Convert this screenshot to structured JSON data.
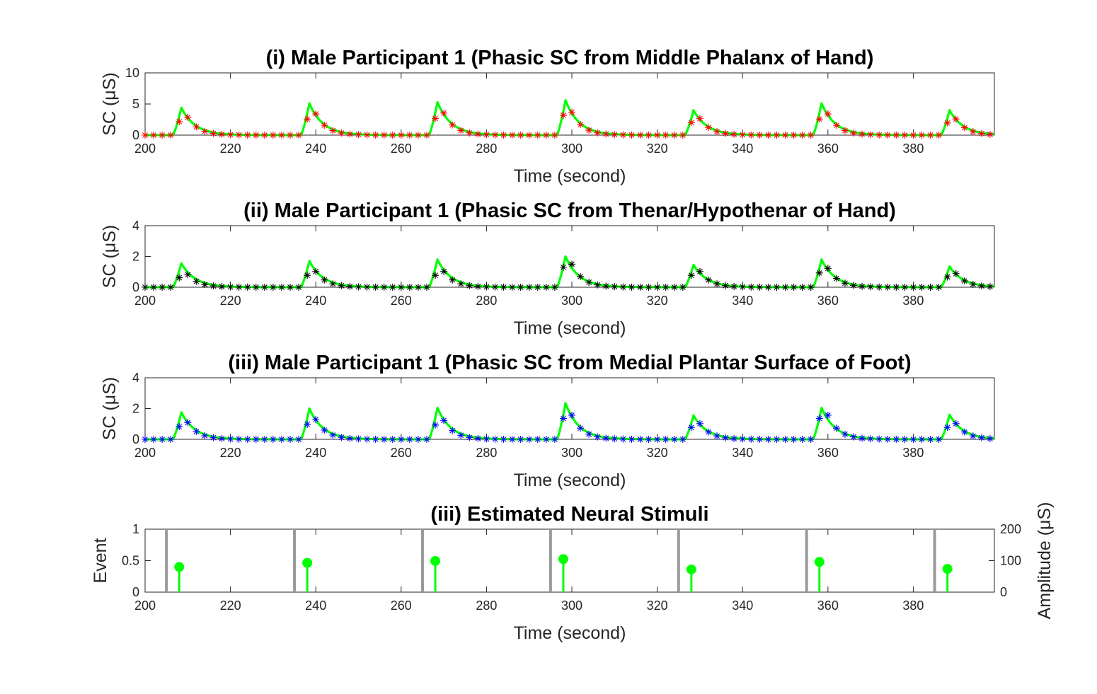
{
  "chart_data": [
    {
      "type": "line",
      "title": "(i) Male Participant 1 (Phasic SC from Middle Phalanx of Hand)",
      "xlabel": "Time (second)",
      "ylabel": "SC (μS)",
      "xlim": [
        200,
        399
      ],
      "ylim": [
        0,
        10
      ],
      "xticks": [
        200,
        220,
        240,
        260,
        280,
        300,
        320,
        340,
        360,
        380
      ],
      "yticks": [
        0,
        5,
        10
      ],
      "grid": false,
      "series": [
        {
          "role": "measured",
          "marker": "asterisk",
          "color": "#ff0000",
          "sample_step": 2,
          "peaks": [
            {
              "onset": 206.5,
              "peak_time": 209,
              "amplitude": 4.2
            },
            {
              "onset": 236.5,
              "peak_time": 239,
              "amplitude": 5.0
            },
            {
              "onset": 266.5,
              "peak_time": 269,
              "amplitude": 5.2
            },
            {
              "onset": 296.0,
              "peak_time": 299,
              "amplitude": 5.4
            },
            {
              "onset": 326.5,
              "peak_time": 329,
              "amplitude": 3.9
            },
            {
              "onset": 356.5,
              "peak_time": 359,
              "amplitude": 5.0
            },
            {
              "onset": 386.5,
              "peak_time": 389,
              "amplitude": 3.8
            }
          ]
        },
        {
          "role": "fitted",
          "line": "solid",
          "color": "#00ff00",
          "peaks": [
            {
              "onset": 206.5,
              "peak_time": 208.5,
              "amplitude": 4.4
            },
            {
              "onset": 236.5,
              "peak_time": 238.5,
              "amplitude": 5.1
            },
            {
              "onset": 266.5,
              "peak_time": 268.5,
              "amplitude": 5.3
            },
            {
              "onset": 296.5,
              "peak_time": 298.5,
              "amplitude": 5.6
            },
            {
              "onset": 326.5,
              "peak_time": 328.5,
              "amplitude": 4.0
            },
            {
              "onset": 356.5,
              "peak_time": 358.5,
              "amplitude": 5.1
            },
            {
              "onset": 386.5,
              "peak_time": 388.5,
              "amplitude": 4.0
            }
          ]
        }
      ]
    },
    {
      "type": "line",
      "title": "(ii) Male Participant 1 (Phasic SC from Thenar/Hypothenar of Hand)",
      "xlabel": "Time (second)",
      "ylabel": "SC (μS)",
      "xlim": [
        200,
        399
      ],
      "ylim": [
        0,
        4
      ],
      "xticks": [
        200,
        220,
        240,
        260,
        280,
        300,
        320,
        340,
        360,
        380
      ],
      "yticks": [
        0,
        2,
        4
      ],
      "grid": false,
      "series": [
        {
          "role": "measured",
          "marker": "asterisk",
          "color": "#000000",
          "sample_step": 2,
          "peaks": [
            {
              "onset": 206.5,
              "peak_time": 209,
              "amplitude": 1.2
            },
            {
              "onset": 236.5,
              "peak_time": 239,
              "amplitude": 1.5
            },
            {
              "onset": 266.5,
              "peak_time": 269,
              "amplitude": 1.5
            },
            {
              "onset": 296.0,
              "peak_time": 299,
              "amplitude": 2.2
            },
            {
              "onset": 326.5,
              "peak_time": 329,
              "amplitude": 1.5
            },
            {
              "onset": 356.5,
              "peak_time": 359,
              "amplitude": 1.8
            },
            {
              "onset": 386.5,
              "peak_time": 389,
              "amplitude": 1.3
            }
          ]
        },
        {
          "role": "fitted",
          "line": "solid",
          "color": "#00ff00",
          "peaks": [
            {
              "onset": 206.5,
              "peak_time": 208.5,
              "amplitude": 1.55
            },
            {
              "onset": 236.5,
              "peak_time": 238.5,
              "amplitude": 1.7
            },
            {
              "onset": 266.5,
              "peak_time": 268.5,
              "amplitude": 1.8
            },
            {
              "onset": 296.5,
              "peak_time": 298.5,
              "amplitude": 2.0
            },
            {
              "onset": 326.5,
              "peak_time": 328.5,
              "amplitude": 1.45
            },
            {
              "onset": 356.5,
              "peak_time": 358.5,
              "amplitude": 1.8
            },
            {
              "onset": 386.5,
              "peak_time": 388.5,
              "amplitude": 1.35
            }
          ]
        }
      ]
    },
    {
      "type": "line",
      "title": "(iii) Male Participant 1 (Phasic SC from Medial Plantar Surface of Foot)",
      "xlabel": "Time (second)",
      "ylabel": "SC (μS)",
      "xlim": [
        200,
        399
      ],
      "ylim": [
        0,
        4
      ],
      "xticks": [
        200,
        220,
        240,
        260,
        280,
        300,
        320,
        340,
        360,
        380
      ],
      "yticks": [
        0,
        2,
        4
      ],
      "grid": false,
      "series": [
        {
          "role": "measured",
          "marker": "asterisk",
          "color": "#0000ff",
          "sample_step": 2,
          "peaks": [
            {
              "onset": 206.5,
              "peak_time": 209,
              "amplitude": 1.6
            },
            {
              "onset": 236.5,
              "peak_time": 239,
              "amplitude": 1.9
            },
            {
              "onset": 266.5,
              "peak_time": 269,
              "amplitude": 1.8
            },
            {
              "onset": 296.0,
              "peak_time": 299,
              "amplitude": 2.3
            },
            {
              "onset": 326.5,
              "peak_time": 329,
              "amplitude": 1.5
            },
            {
              "onset": 356.0,
              "peak_time": 359,
              "amplitude": 2.3
            },
            {
              "onset": 386.5,
              "peak_time": 389,
              "amplitude": 1.5
            }
          ]
        },
        {
          "role": "fitted",
          "line": "solid",
          "color": "#00ff00",
          "peaks": [
            {
              "onset": 206.5,
              "peak_time": 208.5,
              "amplitude": 1.75
            },
            {
              "onset": 236.5,
              "peak_time": 238.5,
              "amplitude": 2.0
            },
            {
              "onset": 266.5,
              "peak_time": 268.5,
              "amplitude": 2.05
            },
            {
              "onset": 296.5,
              "peak_time": 298.5,
              "amplitude": 2.35
            },
            {
              "onset": 326.5,
              "peak_time": 328.5,
              "amplitude": 1.55
            },
            {
              "onset": 356.5,
              "peak_time": 358.5,
              "amplitude": 2.05
            },
            {
              "onset": 386.5,
              "peak_time": 388.5,
              "amplitude": 1.6
            }
          ]
        }
      ]
    },
    {
      "type": "stem",
      "title": "(iii) Estimated Neural Stimuli",
      "xlabel": "Time (second)",
      "ylabel": "Event",
      "ylabel_right": "Amplitude (μS)",
      "xlim": [
        200,
        399
      ],
      "ylim": [
        0,
        1
      ],
      "ylim_right": [
        0,
        200
      ],
      "xticks": [
        200,
        220,
        240,
        260,
        280,
        300,
        320,
        340,
        360,
        380
      ],
      "yticks": [
        "0",
        "0.5",
        "1"
      ],
      "yticks_right": [
        0,
        100,
        200
      ],
      "grid": false,
      "events": {
        "color": "#999999",
        "x": [
          205,
          235,
          265,
          295,
          325,
          355,
          385
        ],
        "values": [
          1,
          1,
          1,
          1,
          1,
          1,
          1
        ]
      },
      "stimuli": {
        "color": "#00ff00",
        "x": [
          208,
          238,
          268,
          298,
          328,
          358,
          388
        ],
        "values": [
          80,
          93,
          99,
          105,
          72,
          96,
          74
        ]
      }
    }
  ]
}
